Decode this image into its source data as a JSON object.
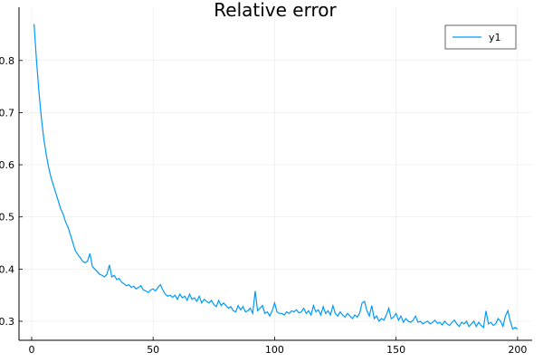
{
  "chart_data": {
    "type": "line",
    "title": "Relative error",
    "x": [
      1,
      2,
      3,
      4,
      5,
      6,
      7,
      8,
      9,
      10,
      11,
      12,
      13,
      14,
      15,
      16,
      17,
      18,
      19,
      20,
      21,
      22,
      23,
      24,
      25,
      26,
      27,
      28,
      29,
      30,
      31,
      32,
      33,
      34,
      35,
      36,
      37,
      38,
      39,
      40,
      41,
      42,
      43,
      44,
      45,
      46,
      47,
      48,
      49,
      50,
      51,
      52,
      53,
      54,
      55,
      56,
      57,
      58,
      59,
      60,
      61,
      62,
      63,
      64,
      65,
      66,
      67,
      68,
      69,
      70,
      71,
      72,
      73,
      74,
      75,
      76,
      77,
      78,
      79,
      80,
      81,
      82,
      83,
      84,
      85,
      86,
      87,
      88,
      89,
      90,
      91,
      92,
      93,
      94,
      95,
      96,
      97,
      98,
      99,
      100,
      101,
      102,
      103,
      104,
      105,
      106,
      107,
      108,
      109,
      110,
      111,
      112,
      113,
      114,
      115,
      116,
      117,
      118,
      119,
      120,
      121,
      122,
      123,
      124,
      125,
      126,
      127,
      128,
      129,
      130,
      131,
      132,
      133,
      134,
      135,
      136,
      137,
      138,
      139,
      140,
      141,
      142,
      143,
      144,
      145,
      146,
      147,
      148,
      149,
      150,
      151,
      152,
      153,
      154,
      155,
      156,
      157,
      158,
      159,
      160,
      161,
      162,
      163,
      164,
      165,
      166,
      167,
      168,
      169,
      170,
      171,
      172,
      173,
      174,
      175,
      176,
      177,
      178,
      179,
      180,
      181,
      182,
      183,
      184,
      185,
      186,
      187,
      188,
      189,
      190,
      191,
      192,
      193,
      194,
      195,
      196,
      197,
      198,
      199,
      200
    ],
    "series": [
      {
        "name": "y1",
        "color": "#009af9",
        "values": [
          0.87,
          0.8,
          0.74,
          0.69,
          0.65,
          0.62,
          0.595,
          0.575,
          0.56,
          0.545,
          0.53,
          0.515,
          0.505,
          0.49,
          0.48,
          0.465,
          0.45,
          0.435,
          0.428,
          0.422,
          0.415,
          0.412,
          0.415,
          0.43,
          0.405,
          0.4,
          0.395,
          0.39,
          0.388,
          0.385,
          0.39,
          0.408,
          0.385,
          0.388,
          0.38,
          0.382,
          0.375,
          0.372,
          0.368,
          0.37,
          0.365,
          0.367,
          0.362,
          0.365,
          0.368,
          0.36,
          0.358,
          0.355,
          0.36,
          0.362,
          0.358,
          0.365,
          0.37,
          0.36,
          0.352,
          0.348,
          0.35,
          0.346,
          0.35,
          0.342,
          0.352,
          0.345,
          0.348,
          0.34,
          0.352,
          0.342,
          0.345,
          0.338,
          0.348,
          0.335,
          0.342,
          0.338,
          0.335,
          0.34,
          0.332,
          0.328,
          0.34,
          0.33,
          0.335,
          0.33,
          0.325,
          0.328,
          0.32,
          0.318,
          0.33,
          0.322,
          0.328,
          0.318,
          0.32,
          0.325,
          0.315,
          0.358,
          0.32,
          0.325,
          0.33,
          0.315,
          0.318,
          0.31,
          0.32,
          0.335,
          0.318,
          0.315,
          0.315,
          0.312,
          0.318,
          0.315,
          0.32,
          0.318,
          0.322,
          0.316,
          0.318,
          0.325,
          0.315,
          0.32,
          0.312,
          0.33,
          0.318,
          0.322,
          0.312,
          0.328,
          0.315,
          0.32,
          0.312,
          0.33,
          0.315,
          0.31,
          0.318,
          0.312,
          0.308,
          0.315,
          0.31,
          0.305,
          0.312,
          0.308,
          0.315,
          0.335,
          0.338,
          0.32,
          0.31,
          0.33,
          0.305,
          0.31,
          0.3,
          0.305,
          0.302,
          0.312,
          0.325,
          0.305,
          0.308,
          0.315,
          0.302,
          0.31,
          0.298,
          0.305,
          0.3,
          0.298,
          0.302,
          0.31,
          0.298,
          0.3,
          0.295,
          0.298,
          0.3,
          0.295,
          0.298,
          0.302,
          0.296,
          0.298,
          0.293,
          0.3,
          0.295,
          0.292,
          0.298,
          0.302,
          0.295,
          0.29,
          0.298,
          0.295,
          0.3,
          0.29,
          0.295,
          0.3,
          0.29,
          0.298,
          0.292,
          0.288,
          0.32,
          0.295,
          0.298,
          0.292,
          0.295,
          0.305,
          0.3,
          0.29,
          0.31,
          0.32,
          0.3,
          0.285,
          0.288,
          0.285
        ]
      }
    ],
    "xlim": [
      -5.2,
      206
    ],
    "ylim": [
      0.2635,
      0.902
    ],
    "xticks": [
      0,
      50,
      100,
      150,
      200
    ],
    "yticks": [
      0.3,
      0.4,
      0.5,
      0.6,
      0.7,
      0.8
    ],
    "grid": true,
    "legend": "top-right"
  }
}
